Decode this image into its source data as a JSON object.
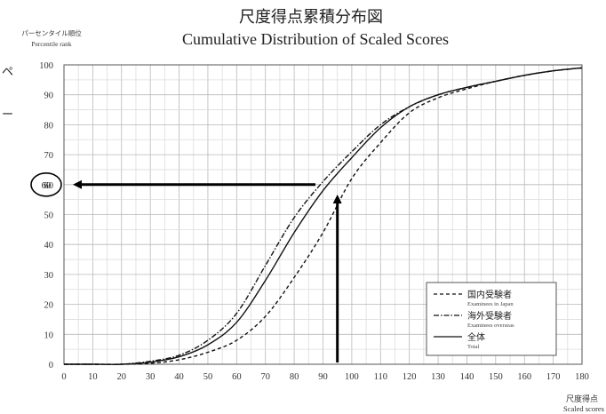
{
  "chart_data": {
    "type": "line",
    "title_ja": "尺度得点累積分布図",
    "title_en": "Cumulative Distribution of Scaled Scores",
    "ylabel_ja": "パーセンタイル順位",
    "ylabel_en": "Percentile rank",
    "xlabel_ja": "尺度得点",
    "xlabel_en": "Scaled scores",
    "xlim": [
      0,
      180
    ],
    "ylim": [
      0,
      100
    ],
    "x_ticks": [
      "0",
      "10",
      "20",
      "30",
      "40",
      "50",
      "60",
      "70",
      "80",
      "90",
      "100",
      "110",
      "120",
      "130",
      "140",
      "150",
      "160",
      "170",
      "180"
    ],
    "y_ticks": [
      "0",
      "10",
      "20",
      "30",
      "40",
      "50",
      "60",
      "70",
      "80",
      "90",
      "100"
    ],
    "grid": true,
    "legend_position": "bottom-right",
    "x": [
      0,
      10,
      20,
      30,
      40,
      50,
      60,
      70,
      80,
      90,
      100,
      110,
      120,
      130,
      140,
      150,
      160,
      170,
      180
    ],
    "series": [
      {
        "name": "国内受験者",
        "name_en": "Examinees in Japan",
        "style": "dashed",
        "values": [
          0,
          0,
          0,
          0.3,
          1.5,
          4,
          8,
          16,
          29,
          44,
          62,
          74,
          84,
          89,
          92,
          94.5,
          96.5,
          98,
          99
        ]
      },
      {
        "name": "海外受験者",
        "name_en": "Examinees overseas",
        "style": "dashdot",
        "values": [
          0,
          0,
          0,
          1,
          3,
          8,
          17,
          33,
          49,
          61,
          71,
          80,
          86,
          90,
          92.5,
          94.5,
          96.5,
          98,
          99
        ]
      },
      {
        "name": "全体",
        "name_en": "Total",
        "style": "solid",
        "values": [
          0,
          0,
          0,
          0.7,
          2.5,
          6.5,
          14,
          28,
          44,
          58,
          69,
          79,
          86,
          90,
          92.5,
          94.5,
          96.5,
          98,
          99
        ]
      }
    ],
    "annotations": {
      "lookup_x": 95,
      "lookup_y": 60,
      "circled_label": "60"
    }
  },
  "side_glyphs": [
    "ペ",
    "ー"
  ]
}
